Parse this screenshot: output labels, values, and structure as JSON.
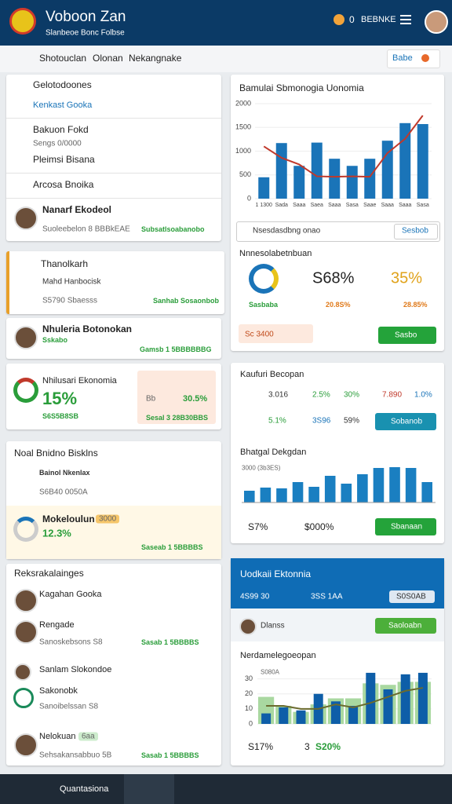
{
  "header": {
    "title": "Voboon Zan",
    "subtitle": "Slanbeoe Bonc Folbse",
    "badge": "0",
    "account": "BEBNKE"
  },
  "toolbar": {
    "crumbs": [
      "Shotouclan",
      "Olonan",
      "Nekangnake"
    ],
    "button": "Babe"
  },
  "nav_panel": {
    "items": [
      "Gelotodoones",
      "Kenkast Gooka",
      "Bakuon Fokd",
      "Pleimsi Bisana",
      "Arcosa Bnoika"
    ],
    "item_note": "Sengs 0/0000",
    "person": {
      "name": "Nanarf Ekodeol",
      "detail": "Suoleebelon 8 BBBkEAE",
      "status": "Subsatlsoabanobo"
    }
  },
  "task_panel": {
    "title": "Thanolkarh",
    "item": "Mahd Hanbocisk",
    "detail": "S5790 Sbaesss",
    "status": "Sanhab Sosaonbob"
  },
  "profile_panel": {
    "name": "Nhuleria Botonokan",
    "role": "Sskabo",
    "status": "Gamsb 1 5BBBBBBG"
  },
  "econ_panel": {
    "title": "Nhilusari Ekonomia",
    "value": "15%",
    "note": "S6S5B8SB",
    "box_label": "Bb",
    "box_value": "30.5%",
    "box_note": "Sesal 3 28B30BBS"
  },
  "funds_panel": {
    "title": "Noal Bnidno Bisklns",
    "item": "Bainol Nkenlax",
    "item_note": "S6B40 0050A",
    "highlight": {
      "title": "Mokeloulun",
      "badge": "3000",
      "value": "12.3%",
      "status": "Saseab 1 5BBBBS"
    }
  },
  "people_panel": {
    "title": "Reksrakalainges",
    "people": [
      {
        "name": "Kagahan Gooka"
      },
      {
        "name": "Rengade",
        "detail": "Sanoskebsons S8",
        "status": "Sasab 1 5BBBBS"
      },
      {
        "name": "Sanlam Slokondoe"
      },
      {
        "name": "Sakonobk",
        "detail": "Sanoibelssan S8"
      },
      {
        "name": "Nelokuan",
        "badge": "6aa",
        "detail": "Sehsakansabbuo 5B",
        "status": "Sasab 1 5BBBBS"
      }
    ]
  },
  "overview_chart": {
    "title": "Bamulai Sbmonogia Uonomia",
    "categories": [
      "1 1300",
      "Sada",
      "Saaa",
      "Saea",
      "Saaa",
      "Sasa",
      "Saae",
      "Saaa",
      "Saaa",
      "Sasa"
    ],
    "bars": [
      450,
      1170,
      690,
      1180,
      840,
      690,
      840,
      1220,
      1590,
      1570
    ],
    "line": [
      1100,
      860,
      720,
      470,
      460,
      470,
      460,
      960,
      1260,
      1750
    ],
    "bar_color": "#1a74b8",
    "line_color": "#c0392b",
    "ylim": [
      0,
      2000
    ],
    "yticks": [
      0,
      500,
      1000,
      1500,
      2000
    ]
  },
  "metrics_panel": {
    "search_placeholder": "Nsesdasdbng onao",
    "search_button": "Sesbob",
    "title": "Nnnesolabetnbuan",
    "main": "S68%",
    "secondary": "35%",
    "label": "Sasbaba",
    "stat_a": "20.8S%",
    "stat_b": "28.85%",
    "footer_tag": "Sc 3400",
    "button": "Sasbo"
  },
  "rates_panel": {
    "title": "Kaufuri Becopan",
    "row1": [
      "3.016",
      "2.5%",
      "30%",
      "7.890",
      "1.0%"
    ],
    "row2": [
      "5.1%",
      "3S96",
      "59%"
    ],
    "row_button": "Sobanob",
    "chart_title": "Bhatgal Dekgdan",
    "chart_subtitle": "3000 (3b3ES)",
    "values": [
      30,
      38,
      36,
      52,
      40,
      68,
      48,
      72,
      88,
      90,
      88,
      52
    ],
    "color": "#1a7fc1",
    "ylim": [
      0,
      100
    ],
    "footer": [
      "S7%",
      "$000%"
    ],
    "button": "Sbanaan"
  },
  "econ_chart_panel": {
    "title": "Uodkaii Ektonnia",
    "stats": [
      "4S99 30",
      "3SS 1AA"
    ],
    "pill": "S0S0AB",
    "user": "Dlanss",
    "button": "Saoloabn",
    "chart_title": "Nerdamelegoeopan",
    "chart_subtitle": "S080A",
    "ylim": [
      0,
      35
    ],
    "yticks": [
      0,
      10,
      20,
      30
    ],
    "bars": [
      7,
      11,
      9,
      20,
      15,
      12,
      34,
      23,
      33,
      34
    ],
    "bars2": [
      18,
      12,
      8,
      13,
      17,
      17,
      27,
      26,
      28,
      28
    ],
    "line": [
      12,
      12,
      10,
      10,
      13,
      11,
      14,
      18,
      22,
      24
    ],
    "bar_color": "#0e5ea8",
    "bar2_color": "#a9d8a0",
    "line_color": "#6b6b2e",
    "footer": [
      "S17%",
      "3",
      "S20%"
    ]
  },
  "bottom_nav": {
    "label": "Quantasiona"
  }
}
